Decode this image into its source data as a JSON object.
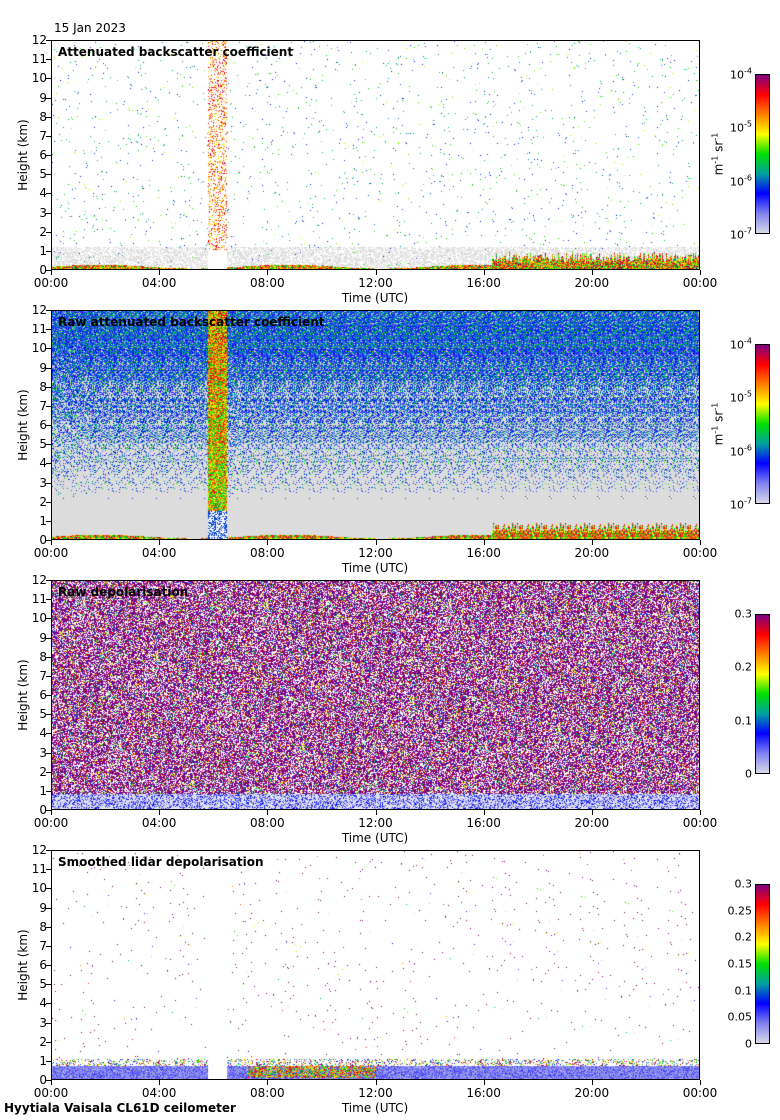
{
  "header": {
    "date": "15 Jan 2023"
  },
  "footer": {
    "site": "Hyytiala Vaisala CL61D ceilometer"
  },
  "colors": {
    "cmap": [
      "#d8d8e8",
      "#8080f0",
      "#0000ff",
      "#00a0a0",
      "#00e000",
      "#ffff00",
      "#ff8000",
      "#ff0000",
      "#800080"
    ]
  },
  "chart_data": [
    {
      "type": "heatmap",
      "title": "Attenuated backscatter coefficient",
      "xlabel": "Time (UTC)",
      "ylabel": "Height (km)",
      "xticks": [
        "00:00",
        "04:00",
        "08:00",
        "12:00",
        "16:00",
        "20:00",
        "00:00"
      ],
      "yticks": [
        "0",
        "1",
        "2",
        "3",
        "4",
        "5",
        "6",
        "7",
        "8",
        "9",
        "10",
        "11",
        "12"
      ],
      "ylim": [
        0,
        12
      ],
      "xlim_hours": [
        0,
        24
      ],
      "colorbar": {
        "scale": "log",
        "unit": "m-1 sr-1",
        "ticks": [
          {
            "base": "10",
            "exp": "-7"
          },
          {
            "base": "10",
            "exp": "-6"
          },
          {
            "base": "10",
            "exp": "-5"
          },
          {
            "base": "10",
            "exp": "-4"
          }
        ],
        "range": [
          1e-07,
          0.0001
        ]
      },
      "style": "sparse"
    },
    {
      "type": "heatmap",
      "title": "Raw attenuated backscatter coefficient",
      "xlabel": "Time (UTC)",
      "ylabel": "Height (km)",
      "xticks": [
        "00:00",
        "04:00",
        "08:00",
        "12:00",
        "16:00",
        "20:00",
        "00:00"
      ],
      "yticks": [
        "0",
        "1",
        "2",
        "3",
        "4",
        "5",
        "6",
        "7",
        "8",
        "9",
        "10",
        "11",
        "12"
      ],
      "ylim": [
        0,
        12
      ],
      "xlim_hours": [
        0,
        24
      ],
      "colorbar": {
        "scale": "log",
        "unit": "m-1 sr-1",
        "ticks": [
          {
            "base": "10",
            "exp": "-7"
          },
          {
            "base": "10",
            "exp": "-6"
          },
          {
            "base": "10",
            "exp": "-5"
          },
          {
            "base": "10",
            "exp": "-4"
          }
        ],
        "range": [
          1e-07,
          0.0001
        ]
      },
      "style": "raw"
    },
    {
      "type": "heatmap",
      "title": "Raw depolarisation",
      "xlabel": "Time (UTC)",
      "ylabel": "Height (km)",
      "xticks": [
        "00:00",
        "04:00",
        "08:00",
        "12:00",
        "16:00",
        "20:00",
        "00:00"
      ],
      "yticks": [
        "0",
        "1",
        "2",
        "3",
        "4",
        "5",
        "6",
        "7",
        "8",
        "9",
        "10",
        "11",
        "12"
      ],
      "ylim": [
        0,
        12
      ],
      "xlim_hours": [
        0,
        24
      ],
      "colorbar": {
        "scale": "linear",
        "unit": "",
        "ticks": [
          "0",
          "0.1",
          "0.2",
          "0.3"
        ],
        "range": [
          0,
          0.3
        ]
      },
      "style": "depol"
    },
    {
      "type": "heatmap",
      "title": "Smoothed lidar depolarisation",
      "xlabel": "Time (UTC)",
      "ylabel": "Height (km)",
      "xticks": [
        "00:00",
        "04:00",
        "08:00",
        "12:00",
        "16:00",
        "20:00",
        "00:00"
      ],
      "yticks": [
        "0",
        "1",
        "2",
        "3",
        "4",
        "5",
        "6",
        "7",
        "8",
        "9",
        "10",
        "11",
        "12"
      ],
      "ylim": [
        0,
        12
      ],
      "xlim_hours": [
        0,
        24
      ],
      "colorbar": {
        "scale": "linear",
        "unit": "",
        "ticks": [
          "0",
          "0.05",
          "0.1",
          "0.15",
          "0.2",
          "0.25",
          "0.3"
        ],
        "range": [
          0,
          0.3
        ]
      },
      "style": "smooth"
    }
  ]
}
